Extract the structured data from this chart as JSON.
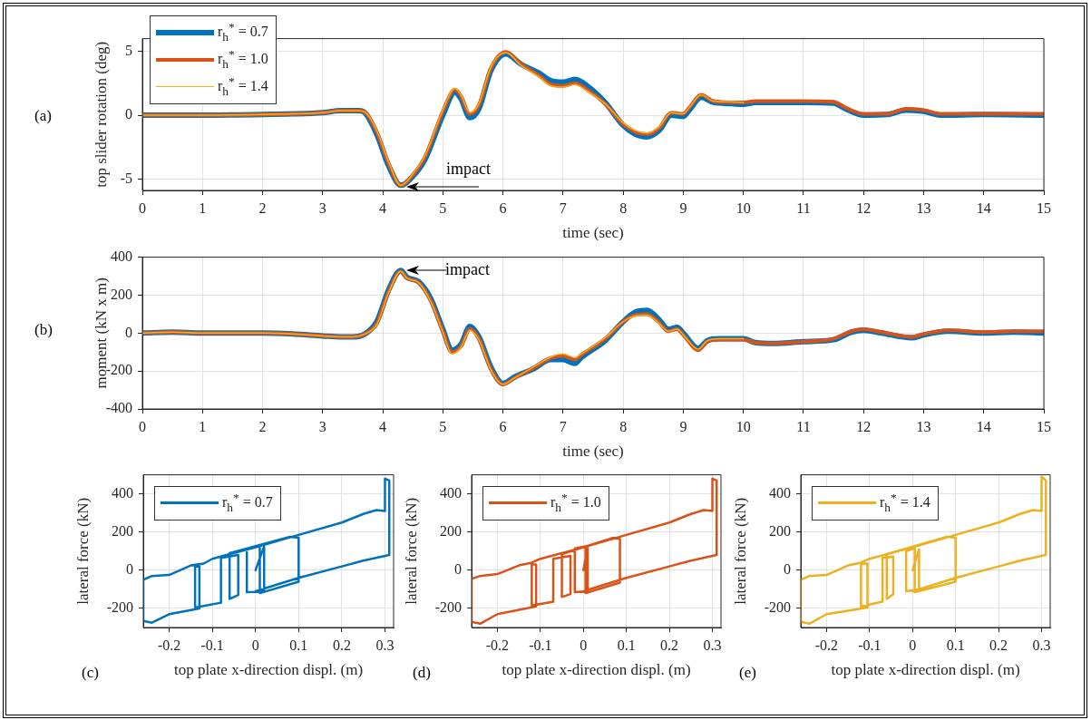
{
  "chart_data": [
    {
      "type": "line",
      "xlabel": "time (sec)",
      "ylabel": "top slider rotation (deg)",
      "xlim": [
        0,
        15
      ],
      "ylim": [
        -5.9,
        6
      ],
      "xticks": [
        0,
        1,
        2,
        3,
        4,
        5,
        6,
        7,
        8,
        9,
        10,
        11,
        12,
        13,
        14,
        15
      ],
      "yticks": [
        -5,
        0,
        5
      ],
      "grid": true,
      "legend": "top left",
      "marker": "none",
      "annotations": [
        "(a)",
        {
          "text": "impact",
          "x": 4.3,
          "y": -5.6
        }
      ],
      "series": [
        {
          "name": "r$_{h}$$^{*}$ = 0.7",
          "color": "#0072bd",
          "x": [
            0,
            1,
            2,
            2.5,
            3,
            3.3,
            3.6,
            3.7,
            3.9,
            4.1,
            4.3,
            4.5,
            4.7,
            5,
            5.2,
            5.3,
            5.45,
            5.6,
            5.8,
            6.05,
            6.3,
            6.6,
            6.8,
            7,
            7.2,
            7.4,
            7.7,
            8,
            8.2,
            8.4,
            8.6,
            8.8,
            9,
            9.1,
            9.3,
            9.5,
            9.8,
            10,
            10.2,
            11,
            11.5,
            11.7,
            12,
            12.4,
            12.7,
            13,
            13.3,
            14,
            15
          ],
          "values": [
            0,
            0,
            0.05,
            0.1,
            0.2,
            0.35,
            0.35,
            0.2,
            -1.5,
            -4,
            -5.5,
            -4.8,
            -3.5,
            0,
            1.8,
            1.3,
            -0.2,
            0.5,
            3.5,
            4.8,
            4,
            3.3,
            2.7,
            2.6,
            2.8,
            2.3,
            1,
            -0.8,
            -1.5,
            -1.7,
            -1.2,
            0,
            -0.1,
            0.4,
            1.4,
            1,
            0.9,
            0.85,
            1,
            1,
            0.95,
            0.5,
            0,
            0.05,
            0.4,
            0.3,
            0,
            0.05,
            0
          ]
        },
        {
          "name": "r$_{h}$$^{*}$ = 1.0",
          "color": "#d95319",
          "x": [
            0,
            1,
            2,
            2.5,
            3,
            3.3,
            3.6,
            3.7,
            3.9,
            4.1,
            4.3,
            4.5,
            4.7,
            5,
            5.2,
            5.3,
            5.45,
            5.6,
            5.8,
            6.05,
            6.3,
            6.6,
            6.8,
            7,
            7.2,
            7.4,
            7.7,
            8,
            8.2,
            8.4,
            8.6,
            8.8,
            9,
            9.1,
            9.3,
            9.5,
            9.8,
            10,
            10.2,
            11,
            11.5,
            11.7,
            12,
            12.4,
            12.7,
            13,
            13.3,
            14,
            15
          ],
          "values": [
            0,
            0,
            0.05,
            0.1,
            0.2,
            0.35,
            0.35,
            0.25,
            -1.3,
            -3.8,
            -5.5,
            -4.7,
            -3.3,
            0.3,
            2,
            1.5,
            0.1,
            0.8,
            3.7,
            4.95,
            4,
            3.1,
            2.4,
            2.3,
            2.5,
            2,
            0.9,
            -0.7,
            -1.3,
            -1.5,
            -1,
            0.2,
            0.1,
            0.6,
            1.6,
            1.1,
            1,
            1,
            1.1,
            1.1,
            1.05,
            0.6,
            0.1,
            0.1,
            0.5,
            0.4,
            0.1,
            0.1,
            0.1
          ]
        },
        {
          "name": "r$_{h}$$^{*}$ = 1.4",
          "color": "#edb120",
          "x": [
            0,
            1,
            2,
            2.5,
            3,
            3.3,
            3.6,
            3.7,
            3.9,
            4.1,
            4.3,
            4.5,
            4.7,
            5,
            5.2,
            5.3,
            5.45,
            5.6,
            5.8,
            6.05,
            6.3,
            6.6,
            6.8,
            7,
            7.2,
            7.4,
            7.7,
            8,
            8.2,
            8.4,
            8.6,
            8.8,
            9,
            9.1,
            9.3,
            9.5,
            9.8,
            10
          ],
          "values": [
            0,
            0,
            0.05,
            0.1,
            0.2,
            0.35,
            0.35,
            0.25,
            -1.2,
            -3.7,
            -5.5,
            -4.6,
            -3.2,
            0.4,
            2.1,
            1.6,
            0.2,
            0.9,
            3.8,
            4.9,
            3.9,
            3,
            2.3,
            2.2,
            2.4,
            1.9,
            0.9,
            -0.6,
            -1.2,
            -1.4,
            -0.9,
            0.2,
            0.1,
            0.6,
            1.6,
            1.1,
            1.05,
            1
          ]
        }
      ]
    },
    {
      "type": "line",
      "xlabel": "time (sec)",
      "ylabel": "moment (kN x m)",
      "xlim": [
        0,
        15
      ],
      "ylim": [
        -400,
        400
      ],
      "xticks": [
        0,
        1,
        2,
        3,
        4,
        5,
        6,
        7,
        8,
        9,
        10,
        11,
        12,
        13,
        14,
        15
      ],
      "yticks": [
        -400,
        -200,
        0,
        200,
        400
      ],
      "grid": true,
      "marker": "none",
      "annotations": [
        "(b)",
        {
          "text": "impact",
          "x": 4.3,
          "y": 330
        }
      ],
      "series": [
        {
          "color": "#0072bd",
          "x": [
            0,
            0.5,
            1,
            1.5,
            2,
            2.5,
            3,
            3.3,
            3.5,
            3.7,
            3.9,
            4.1,
            4.3,
            4.4,
            4.6,
            4.8,
            5,
            5.15,
            5.3,
            5.45,
            5.6,
            5.8,
            6,
            6.2,
            6.5,
            6.8,
            7,
            7.2,
            7.3,
            7.7,
            8,
            8.2,
            8.4,
            8.6,
            8.75,
            8.9,
            9,
            9.25,
            9.4,
            9.6,
            10,
            10.2,
            10.5,
            11,
            11.5,
            11.8,
            12,
            12.3,
            12.8,
            13,
            13.4,
            14,
            14.5,
            15
          ],
          "values": [
            0,
            5,
            0,
            0,
            0,
            -5,
            -15,
            -20,
            -20,
            -5,
            60,
            230,
            330,
            295,
            270,
            180,
            20,
            -90,
            -60,
            35,
            -20,
            -180,
            -265,
            -230,
            -190,
            -140,
            -140,
            -160,
            -130,
            -40,
            60,
            110,
            120,
            70,
            20,
            30,
            0,
            -80,
            -40,
            -30,
            -30,
            -50,
            -55,
            -45,
            -35,
            5,
            15,
            0,
            -25,
            -10,
            10,
            0,
            5,
            0
          ]
        },
        {
          "color": "#d95319",
          "x": [
            0,
            0.5,
            1,
            1.5,
            2,
            2.5,
            3,
            3.3,
            3.5,
            3.7,
            3.9,
            4.1,
            4.3,
            4.4,
            4.6,
            4.8,
            5,
            5.15,
            5.3,
            5.45,
            5.6,
            5.8,
            6,
            6.2,
            6.5,
            6.8,
            7,
            7.2,
            7.3,
            7.7,
            8,
            8.2,
            8.4,
            8.6,
            8.75,
            8.9,
            9,
            9.25,
            9.4,
            9.6,
            10,
            10.2,
            10.5,
            11,
            11.5,
            11.8,
            12,
            12.3,
            12.8,
            13,
            13.4,
            14,
            14.5,
            15
          ],
          "values": [
            0,
            5,
            0,
            0,
            0,
            -5,
            -15,
            -20,
            -20,
            -5,
            50,
            220,
            325,
            290,
            265,
            170,
            10,
            -100,
            -70,
            20,
            -30,
            -190,
            -270,
            -235,
            -185,
            -130,
            -120,
            -140,
            -115,
            -30,
            60,
            95,
            100,
            55,
            10,
            20,
            -10,
            -90,
            -45,
            -35,
            -35,
            -50,
            -55,
            -45,
            -30,
            10,
            20,
            5,
            -20,
            -5,
            15,
            5,
            10,
            10
          ]
        },
        {
          "color": "#edb120",
          "x": [
            0,
            0.5,
            1,
            1.5,
            2,
            2.5,
            3,
            3.3,
            3.5,
            3.7,
            3.9,
            4.1,
            4.3,
            4.4,
            4.6,
            4.8,
            5,
            5.15,
            5.3,
            5.45,
            5.6,
            5.8,
            6,
            6.2,
            6.5,
            6.8,
            7,
            7.2,
            7.3,
            7.7,
            8,
            8.2,
            8.4,
            8.6,
            8.75,
            8.9,
            9,
            9.25,
            9.4,
            9.6,
            10
          ],
          "values": [
            0,
            5,
            0,
            0,
            0,
            -5,
            -15,
            -20,
            -20,
            -5,
            45,
            215,
            325,
            290,
            265,
            165,
            5,
            -110,
            -75,
            15,
            -35,
            -195,
            -270,
            -235,
            -180,
            -125,
            -110,
            -130,
            -110,
            -25,
            60,
            90,
            95,
            50,
            10,
            20,
            -10,
            -85,
            -40,
            -30,
            -30
          ]
        }
      ]
    },
    {
      "type": "line",
      "xlabel": "top plate x-direction displ. (m)",
      "ylabel": "lateral force (kN)",
      "xlim": [
        -0.26,
        0.32
      ],
      "ylim": [
        -300,
        500
      ],
      "xticks": [
        -0.2,
        -0.1,
        0,
        0.1,
        0.2,
        0.3
      ],
      "yticks": [
        -200,
        0,
        200,
        400
      ],
      "grid": true,
      "legend": "top left",
      "marker": "none",
      "annotations": [
        "(c)"
      ],
      "series": [
        {
          "name": "r$_{h}$$^{*}$ = 0.7",
          "color": "#0072bd",
          "x": [
            0,
            0.02,
            0.02,
            -0.02,
            -0.02,
            0.01,
            0.01,
            0.1,
            0.1,
            0.08,
            -0.06,
            -0.06,
            -0.04,
            -0.04,
            -0.08,
            -0.08,
            -0.14,
            -0.14,
            -0.13,
            -0.13,
            -0.2,
            -0.24,
            -0.26,
            -0.26,
            -0.24,
            -0.2,
            -0.15,
            -0.12,
            -0.1,
            0,
            0.1,
            0.2,
            0.25,
            0.28,
            0.3,
            0.3,
            0.31,
            0.31,
            0.25,
            0.2,
            0.1,
            0
          ],
          "values": [
            0,
            125,
            -110,
            -115,
            115,
            125,
            -120,
            -60,
            170,
            175,
            90,
            -150,
            -130,
            80,
            65,
            -170,
            -195,
            20,
            20,
            -200,
            -230,
            -275,
            -265,
            -50,
            -30,
            -25,
            25,
            35,
            60,
            120,
            185,
            250,
            295,
            315,
            310,
            480,
            470,
            80,
            50,
            20,
            -40,
            -110
          ]
        }
      ]
    },
    {
      "type": "line",
      "xlabel": "top plate x-direction displ. (m)",
      "ylabel": "lateral force (kN)",
      "xlim": [
        -0.26,
        0.32
      ],
      "ylim": [
        -300,
        500
      ],
      "xticks": [
        -0.2,
        -0.1,
        0,
        0.1,
        0.2,
        0.3
      ],
      "yticks": [
        -200,
        0,
        200,
        400
      ],
      "grid": true,
      "legend": "top left",
      "marker": "none",
      "annotations": [
        "(d)"
      ],
      "series": [
        {
          "name": "r$_{h}$$^{*}$ = 1.0",
          "color": "#d95319",
          "x": [
            0,
            0.01,
            0.01,
            -0.02,
            -0.02,
            0.005,
            0.005,
            0.085,
            0.085,
            0.07,
            -0.05,
            -0.05,
            -0.03,
            -0.03,
            -0.07,
            -0.07,
            -0.12,
            -0.12,
            -0.11,
            -0.11,
            -0.2,
            -0.24,
            -0.26,
            -0.26,
            -0.24,
            -0.2,
            -0.15,
            -0.12,
            -0.1,
            0,
            0.1,
            0.2,
            0.25,
            0.28,
            0.3,
            0.3,
            0.31,
            0.31,
            0.25,
            0.2,
            0.1,
            0
          ],
          "values": [
            0,
            125,
            -110,
            -115,
            115,
            125,
            -120,
            -65,
            165,
            170,
            85,
            -140,
            -125,
            75,
            60,
            -165,
            -185,
            30,
            30,
            -190,
            -230,
            -280,
            -270,
            -45,
            -30,
            -20,
            25,
            40,
            60,
            120,
            185,
            250,
            295,
            315,
            310,
            480,
            470,
            80,
            50,
            20,
            -40,
            -110
          ]
        }
      ]
    },
    {
      "type": "line",
      "xlabel": "top plate x-direction displ. (m)",
      "ylabel": "lateral force (kN)",
      "xlim": [
        -0.26,
        0.32
      ],
      "ylim": [
        -300,
        500
      ],
      "xticks": [
        -0.2,
        -0.1,
        0,
        0.1,
        0.2,
        0.3
      ],
      "yticks": [
        -200,
        0,
        200,
        400
      ],
      "grid": true,
      "legend": "top left",
      "marker": "none",
      "annotations": [
        "(e)"
      ],
      "series": [
        {
          "name": "r$_{h}$$^{*}$ = 1.4",
          "color": "#edb120",
          "x": [
            0,
            0.015,
            0.015,
            -0.015,
            -0.015,
            0.005,
            0.005,
            0.1,
            0.1,
            0.08,
            -0.06,
            -0.06,
            -0.045,
            -0.045,
            -0.07,
            -0.07,
            -0.12,
            -0.12,
            -0.105,
            -0.105,
            -0.2,
            -0.24,
            -0.26,
            -0.26,
            -0.24,
            -0.2,
            -0.15,
            -0.12,
            -0.1,
            0,
            0.1,
            0.2,
            0.25,
            0.28,
            0.3,
            0.3,
            0.31,
            0.31,
            0.25,
            0.2,
            0.1,
            0
          ],
          "values": [
            0,
            110,
            -100,
            -110,
            100,
            115,
            -115,
            -60,
            170,
            175,
            85,
            -150,
            -125,
            70,
            65,
            -165,
            -190,
            35,
            35,
            -195,
            -230,
            -280,
            -270,
            -50,
            -30,
            -25,
            25,
            40,
            60,
            120,
            185,
            250,
            295,
            315,
            310,
            490,
            470,
            80,
            50,
            20,
            -40,
            -110
          ]
        }
      ]
    }
  ]
}
